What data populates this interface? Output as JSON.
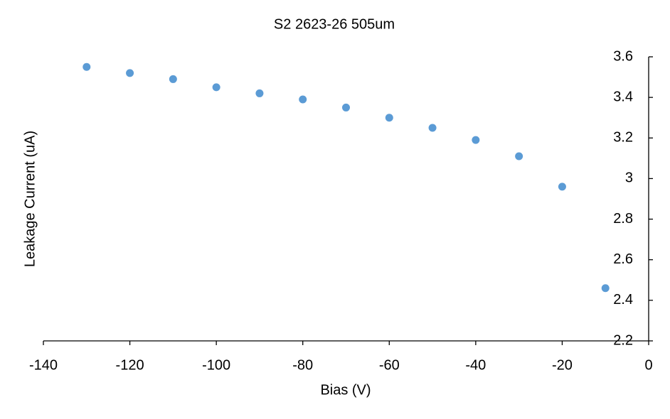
{
  "chart_data": {
    "type": "scatter",
    "title": "S2 2623-26 505um",
    "x_label": "Bias (V)",
    "y_label": "Leakage Current (uA)",
    "x": [
      -130,
      -120,
      -110,
      -100,
      -90,
      -80,
      -70,
      -60,
      -50,
      -40,
      -30,
      -20,
      -10
    ],
    "values": [
      3.55,
      3.52,
      3.49,
      3.45,
      3.42,
      3.39,
      3.35,
      3.3,
      3.25,
      3.19,
      3.11,
      2.96,
      2.46
    ],
    "color": "#5b9bd5",
    "xlim": [
      -140,
      0
    ],
    "xticks": [
      -140,
      -120,
      -100,
      -80,
      -60,
      -40,
      -20,
      0
    ],
    "ylim": [
      2.2,
      3.6
    ],
    "yticks": [
      2.2,
      2.4,
      2.6,
      2.8,
      3,
      3.2,
      3.4,
      3.6
    ],
    "grid": false
  }
}
